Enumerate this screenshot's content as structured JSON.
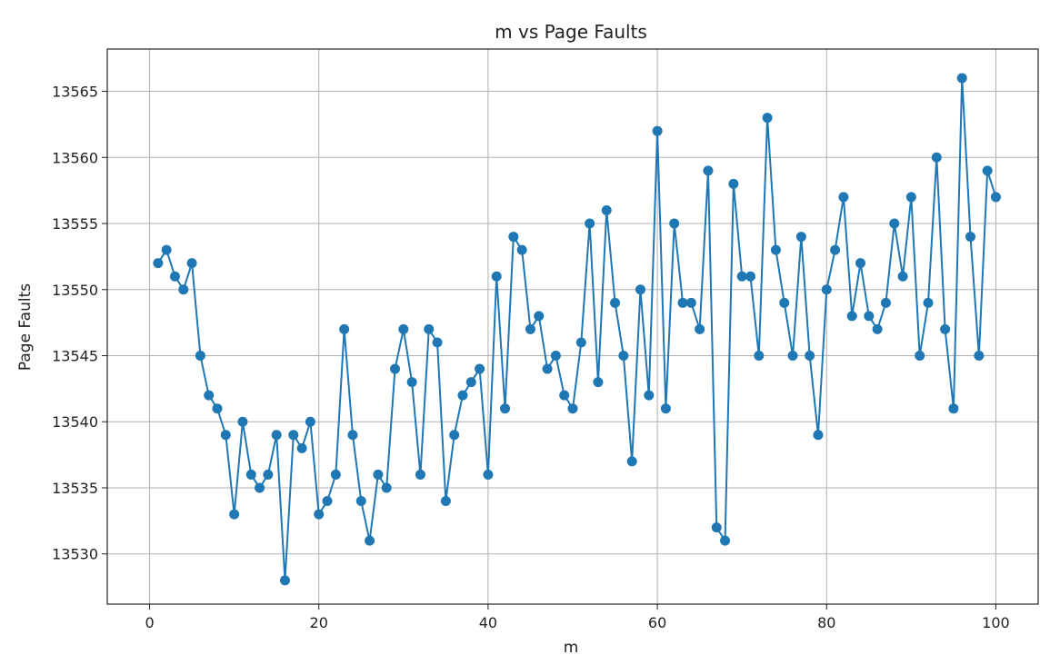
{
  "chart_data": {
    "type": "line",
    "title": "m vs Page Faults",
    "xlabel": "m",
    "ylabel": "Page Faults",
    "xlim": [
      -5,
      105
    ],
    "ylim": [
      13526.2,
      13568.2
    ],
    "xticks": [
      0,
      20,
      40,
      60,
      80,
      100
    ],
    "yticks": [
      13530,
      13535,
      13540,
      13545,
      13550,
      13555,
      13560,
      13565
    ],
    "grid": true,
    "marker": "circle",
    "color": "#1f77b4",
    "series": [
      {
        "x": [
          1,
          2,
          3,
          4,
          5,
          6,
          7,
          8,
          9,
          10,
          11,
          12,
          13,
          14,
          15,
          16,
          17,
          18,
          19,
          20,
          21,
          22,
          23,
          24,
          25,
          26,
          27,
          28,
          29,
          30,
          31,
          32,
          33,
          34,
          35,
          36,
          37,
          38,
          39,
          40,
          41,
          42,
          43,
          44,
          45,
          46,
          47,
          48,
          49,
          50,
          51,
          52,
          53,
          54,
          55,
          56,
          57,
          58,
          59,
          60,
          61,
          62,
          63,
          64,
          65,
          66,
          67,
          68,
          69,
          70,
          71,
          72,
          73,
          74,
          75,
          76,
          77,
          78,
          79,
          80,
          81,
          82,
          83,
          84,
          85,
          86,
          87,
          88,
          89,
          90,
          91,
          92,
          93,
          94,
          95,
          96,
          97,
          98,
          99,
          100
        ],
        "y": [
          13552,
          13553,
          13551,
          13550,
          13552,
          13545,
          13542,
          13541,
          13539,
          13533,
          13540,
          13536,
          13535,
          13536,
          13539,
          13528,
          13539,
          13538,
          13540,
          13533,
          13534,
          13536,
          13547,
          13539,
          13534,
          13531,
          13536,
          13535,
          13544,
          13547,
          13543,
          13536,
          13547,
          13546,
          13534,
          13539,
          13542,
          13543,
          13544,
          13536,
          13551,
          13541,
          13554,
          13553,
          13547,
          13548,
          13544,
          13545,
          13542,
          13541,
          13546,
          13555,
          13543,
          13556,
          13549,
          13545,
          13537,
          13550,
          13542,
          13562,
          13541,
          13555,
          13549,
          13549,
          13547,
          13559,
          13532,
          13531,
          13558,
          13551,
          13551,
          13545,
          13563,
          13553,
          13549,
          13545,
          13554,
          13545,
          13539,
          13550,
          13553,
          13557,
          13548,
          13552,
          13548,
          13547,
          13549,
          13555,
          13551,
          13557,
          13545,
          13549,
          13560,
          13547,
          13541,
          13566,
          13554,
          13545,
          13559,
          13557
        ]
      }
    ]
  }
}
